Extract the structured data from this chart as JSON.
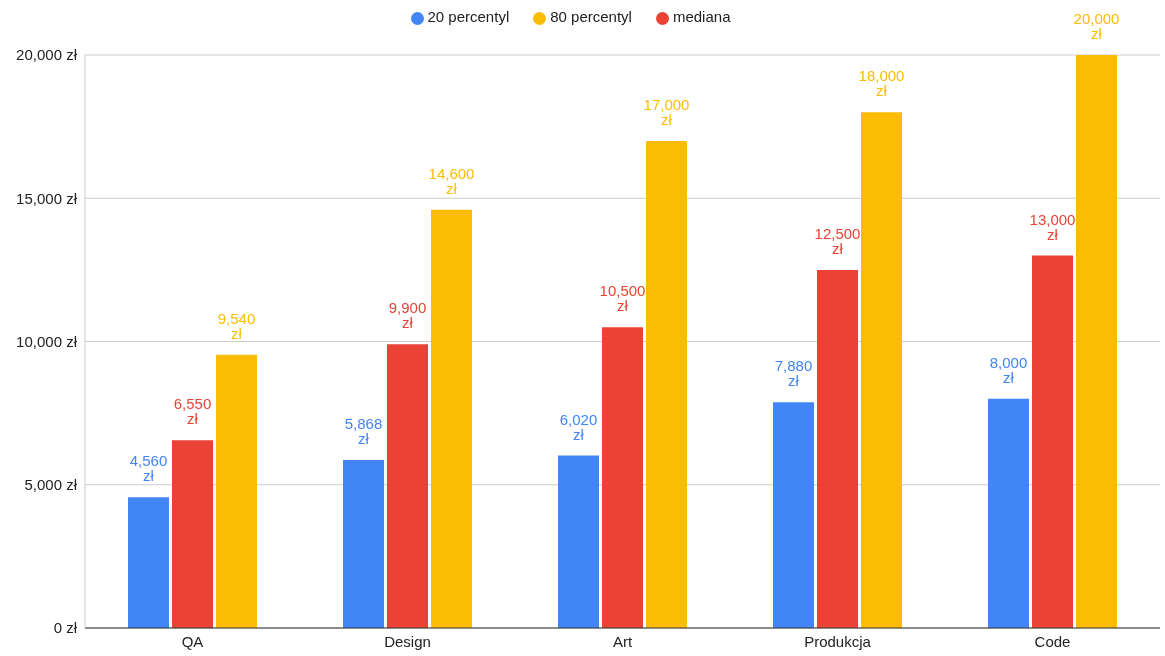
{
  "chart_data": {
    "type": "bar",
    "categories": [
      "QA",
      "Design",
      "Art",
      "Produkcja",
      "Code"
    ],
    "series": [
      {
        "name": "20 percentyl",
        "color": "#4285f4",
        "values": [
          4560,
          5868,
          6020,
          7880,
          8000
        ],
        "value_labels": [
          "4,560 zł",
          "5,868 zł",
          "6,020 zł",
          "7,880 zł",
          "8,000 zł"
        ]
      },
      {
        "name": "mediana",
        "color": "#ea4335",
        "values": [
          6550,
          9900,
          10500,
          12500,
          13000
        ],
        "value_labels": [
          "6,550 zł",
          "9,900 zł",
          "10,500 zł",
          "12,500 zł",
          "13,000 zł"
        ]
      },
      {
        "name": "80 percentyl",
        "color": "#fbbc04",
        "values": [
          9540,
          14600,
          17000,
          18000,
          20000
        ],
        "value_labels": [
          "9,540 zł",
          "14,600 zł",
          "17,000 zł",
          "18,000 zł",
          "20,000 zł"
        ]
      }
    ],
    "ylim": [
      0,
      20000
    ],
    "yticks": [
      {
        "value": 0,
        "label": "0 zł"
      },
      {
        "value": 5000,
        "label": "5,000 zł"
      },
      {
        "value": 10000,
        "label": "10,000 zł"
      },
      {
        "value": 15000,
        "label": "15,000 zł"
      },
      {
        "value": 20000,
        "label": "20,000 zł"
      }
    ],
    "grid": "y",
    "legend": "top"
  }
}
